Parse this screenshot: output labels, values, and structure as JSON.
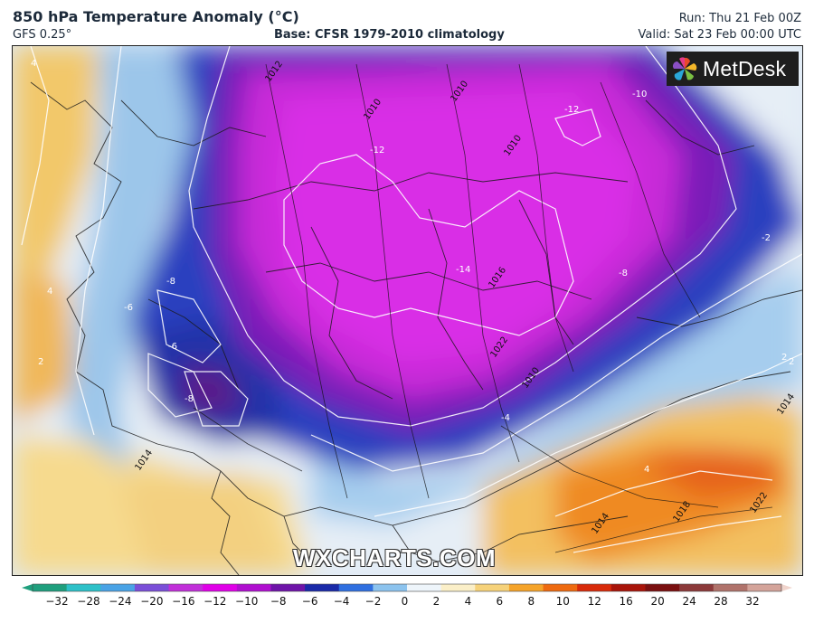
{
  "header": {
    "title": "850 hPa Temperature Anomaly (°C)",
    "model": "GFS 0.25°",
    "base": "Base: CFSR 1979-2010 climatology",
    "run": "Run: Thu 21 Feb 00Z",
    "valid": "Valid: Sat 23 Feb 00:00 UTC"
  },
  "logo": {
    "text": "MetDesk",
    "icon": "metdesk-pinwheel-icon"
  },
  "watermark": "WXCHARTS.COM",
  "map_labels": {
    "anomaly": [
      "-12",
      "-12",
      "-10",
      "-14",
      "-8",
      "-8",
      "-6",
      "-6",
      "-8",
      "-4",
      "-2",
      "2",
      "2",
      "4",
      "4",
      "4",
      "2"
    ],
    "isobars": [
      "1012",
      "1010",
      "1010",
      "1010",
      "1016",
      "1022",
      "1010",
      "1014",
      "1018",
      "1022",
      "1014",
      "1014"
    ]
  },
  "colorbar": {
    "ticks": [
      "−32",
      "−28",
      "−24",
      "−20",
      "−16",
      "−12",
      "−10",
      "−8",
      "−6",
      "−4",
      "−2",
      "0",
      "2",
      "4",
      "6",
      "8",
      "10",
      "12",
      "16",
      "20",
      "24",
      "28",
      "32"
    ],
    "colors": [
      "#1f9f7d",
      "#2ec1c8",
      "#4aa3e6",
      "#7a4fd8",
      "#c12fd9",
      "#e000e8",
      "#b00fd0",
      "#6e14a8",
      "#1a2aa8",
      "#2f6fe0",
      "#8cc3ee",
      "#eef5fb",
      "#fbefc8",
      "#f6d27a",
      "#f5a42a",
      "#ee6a10",
      "#d82a0a",
      "#a8140a",
      "#7a1010",
      "#8c3a3a",
      "#b0736b",
      "#d4a49a",
      "#f0d4cc"
    ]
  }
}
